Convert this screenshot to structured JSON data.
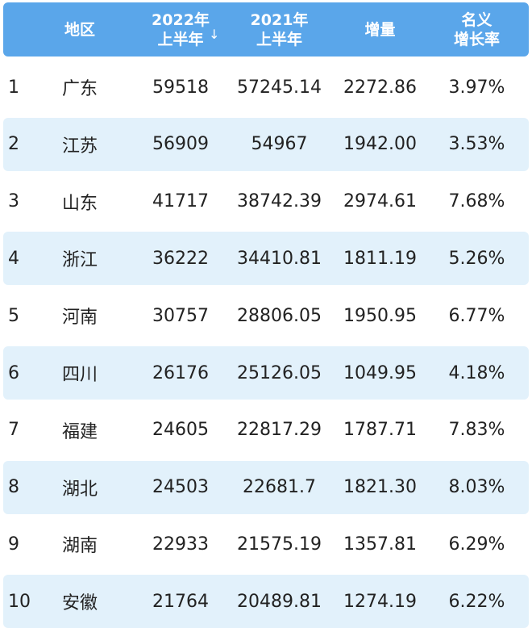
{
  "header": {
    "rank": "",
    "region": "地区",
    "h2022_line1": "2022年",
    "h2022_line2": "上半年",
    "h2021_line1": "2021年",
    "h2021_line2": "上半年",
    "increase": "增量",
    "rate_line1": "名义",
    "rate_line2": "增长率",
    "sort_icon": "arrow-down"
  },
  "colors": {
    "header_bg": "#5aa6ea",
    "alt_row_bg": "#e2f1fb"
  },
  "rows": [
    {
      "rank": "1",
      "region": "广东",
      "v2022": "59518",
      "v2021": "57245.14",
      "increase": "2272.86",
      "rate": "3.97%"
    },
    {
      "rank": "2",
      "region": "江苏",
      "v2022": "56909",
      "v2021": "54967",
      "increase": "1942.00",
      "rate": "3.53%"
    },
    {
      "rank": "3",
      "region": "山东",
      "v2022": "41717",
      "v2021": "38742.39",
      "increase": "2974.61",
      "rate": "7.68%"
    },
    {
      "rank": "4",
      "region": "浙江",
      "v2022": "36222",
      "v2021": "34410.81",
      "increase": "1811.19",
      "rate": "5.26%"
    },
    {
      "rank": "5",
      "region": "河南",
      "v2022": "30757",
      "v2021": "28806.05",
      "increase": "1950.95",
      "rate": "6.77%"
    },
    {
      "rank": "6",
      "region": "四川",
      "v2022": "26176",
      "v2021": "25126.05",
      "increase": "1049.95",
      "rate": "4.18%"
    },
    {
      "rank": "7",
      "region": "福建",
      "v2022": "24605",
      "v2021": "22817.29",
      "increase": "1787.71",
      "rate": "7.83%"
    },
    {
      "rank": "8",
      "region": "湖北",
      "v2022": "24503",
      "v2021": "22681.7",
      "increase": "1821.30",
      "rate": "8.03%"
    },
    {
      "rank": "9",
      "region": "湖南",
      "v2022": "22933",
      "v2021": "21575.19",
      "increase": "1357.81",
      "rate": "6.29%"
    },
    {
      "rank": "10",
      "region": "安徽",
      "v2022": "21764",
      "v2021": "20489.81",
      "increase": "1274.19",
      "rate": "6.22%"
    }
  ]
}
